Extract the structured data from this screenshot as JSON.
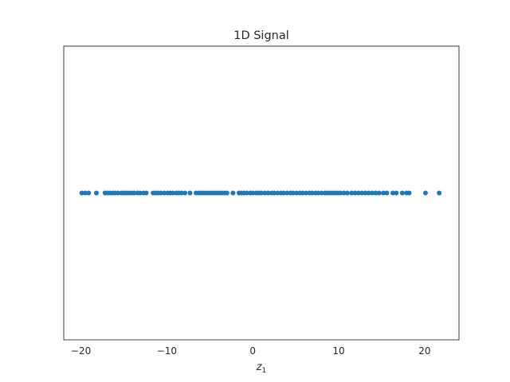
{
  "chart_data": {
    "type": "scatter",
    "title": "1D Signal",
    "xlabel": "z",
    "xlabel_subscript": "1",
    "ylabel": "",
    "xlim": [
      -22,
      24
    ],
    "ylim": [
      -1,
      1
    ],
    "xticks": [
      -20,
      -10,
      0,
      10,
      20
    ],
    "xtick_labels": [
      "−20",
      "−10",
      "0",
      "10",
      "20"
    ],
    "yticks": [],
    "grid": false,
    "marker_color": "#1f77b4",
    "series": [
      {
        "x": [
          -19.9,
          -19.5,
          -19.1,
          -18.2,
          -17.2,
          -16.9,
          -16.6,
          -16.3,
          -16.0,
          -15.7,
          -15.3,
          -15.0,
          -14.7,
          -14.4,
          -14.1,
          -13.8,
          -13.4,
          -13.1,
          -12.7,
          -12.4,
          -11.6,
          -11.3,
          -11.0,
          -10.7,
          -10.3,
          -9.9,
          -9.6,
          -9.3,
          -8.9,
          -8.6,
          -8.3,
          -7.9,
          -7.3,
          -6.6,
          -6.3,
          -6.0,
          -5.7,
          -5.4,
          -5.1,
          -4.8,
          -4.5,
          -4.2,
          -3.9,
          -3.6,
          -3.3,
          -3.0,
          -2.3,
          -1.6,
          -1.3,
          -1.0,
          -0.7,
          -0.3,
          0.0,
          0.4,
          0.7,
          1.0,
          1.4,
          1.8,
          2.2,
          2.5,
          2.9,
          3.3,
          3.6,
          4.0,
          4.4,
          4.7,
          5.1,
          5.5,
          5.8,
          6.2,
          6.6,
          6.9,
          7.3,
          7.6,
          8.0,
          8.4,
          8.7,
          9.0,
          9.3,
          9.6,
          9.9,
          10.2,
          10.6,
          11.0,
          11.5,
          11.9,
          12.3,
          12.7,
          13.1,
          13.5,
          13.9,
          14.3,
          14.7,
          15.2,
          15.6,
          16.3,
          16.7,
          17.4,
          17.9,
          18.2,
          20.1,
          21.7
        ],
        "y": [
          0,
          0,
          0,
          0,
          0,
          0,
          0,
          0,
          0,
          0,
          0,
          0,
          0,
          0,
          0,
          0,
          0,
          0,
          0,
          0,
          0,
          0,
          0,
          0,
          0,
          0,
          0,
          0,
          0,
          0,
          0,
          0,
          0,
          0,
          0,
          0,
          0,
          0,
          0,
          0,
          0,
          0,
          0,
          0,
          0,
          0,
          0,
          0,
          0,
          0,
          0,
          0,
          0,
          0,
          0,
          0,
          0,
          0,
          0,
          0,
          0,
          0,
          0,
          0,
          0,
          0,
          0,
          0,
          0,
          0,
          0,
          0,
          0,
          0,
          0,
          0,
          0,
          0,
          0,
          0,
          0,
          0,
          0,
          0,
          0,
          0,
          0,
          0,
          0,
          0,
          0,
          0,
          0,
          0,
          0,
          0,
          0,
          0,
          0,
          0,
          0,
          0
        ]
      }
    ]
  }
}
